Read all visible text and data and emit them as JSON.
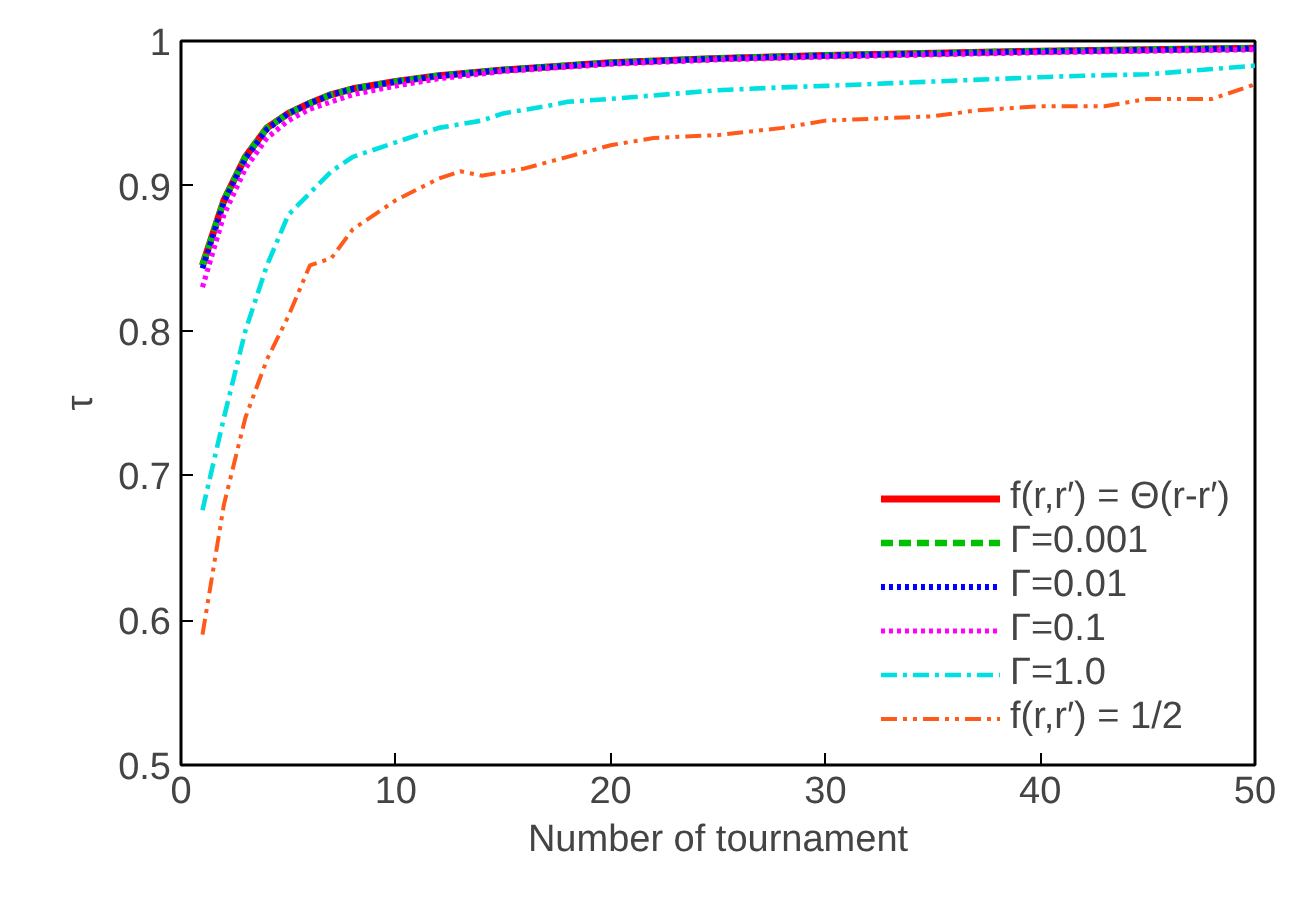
{
  "chart_data": {
    "type": "line",
    "xlabel": "Number of tournament",
    "ylabel": "τ",
    "xlim": [
      0,
      50
    ],
    "ylim": [
      0.5,
      1
    ],
    "xticks": [
      0,
      10,
      20,
      30,
      40,
      50
    ],
    "yticks": [
      0.5,
      0.6,
      0.7,
      0.8,
      0.9,
      {
        "value": 1,
        "label": "1"
      }
    ],
    "grid": false,
    "legend": "bottom right",
    "marker": "none",
    "series": [
      {
        "name": "f(r,r′) = Θ(r-r′)",
        "color": "#ff0000",
        "line_style": "solid",
        "x": [
          1,
          2,
          3,
          4,
          5,
          6,
          7,
          8,
          10,
          12,
          15,
          20,
          25,
          30,
          40,
          50
        ],
        "values": [
          0.845,
          0.89,
          0.92,
          0.94,
          0.95,
          0.957,
          0.963,
          0.967,
          0.972,
          0.976,
          0.98,
          0.985,
          0.988,
          0.99,
          0.993,
          0.995
        ]
      },
      {
        "name": "Γ=0.001",
        "color": "#00c000",
        "line_style": "dashed",
        "x": [
          1,
          2,
          3,
          4,
          5,
          6,
          7,
          8,
          10,
          12,
          15,
          20,
          25,
          30,
          40,
          50
        ],
        "values": [
          0.845,
          0.89,
          0.92,
          0.94,
          0.95,
          0.957,
          0.963,
          0.967,
          0.972,
          0.976,
          0.98,
          0.985,
          0.988,
          0.99,
          0.993,
          0.995
        ]
      },
      {
        "name": "Γ=0.01",
        "color": "#0000ff",
        "line_style": "dotted",
        "x": [
          1,
          2,
          3,
          4,
          5,
          6,
          7,
          8,
          10,
          12,
          15,
          20,
          25,
          30,
          40,
          50
        ],
        "values": [
          0.843,
          0.889,
          0.919,
          0.939,
          0.95,
          0.957,
          0.963,
          0.967,
          0.972,
          0.976,
          0.98,
          0.985,
          0.988,
          0.99,
          0.993,
          0.995
        ]
      },
      {
        "name": "Γ=0.1",
        "color": "#ff00ff",
        "line_style": "dotted",
        "x": [
          1,
          2,
          3,
          4,
          5,
          6,
          7,
          8,
          10,
          12,
          15,
          20,
          25,
          30,
          40,
          50
        ],
        "values": [
          0.83,
          0.88,
          0.912,
          0.933,
          0.945,
          0.953,
          0.958,
          0.963,
          0.969,
          0.974,
          0.979,
          0.984,
          0.987,
          0.989,
          0.992,
          0.994
        ]
      },
      {
        "name": "Γ=1.0",
        "color": "#00e0e0",
        "line_style": "dashdot",
        "x": [
          1,
          2,
          3,
          4,
          5,
          6,
          7,
          8,
          10,
          12,
          14,
          15,
          17,
          18,
          20,
          25,
          28,
          30,
          35,
          40,
          42,
          45,
          50
        ],
        "values": [
          0.676,
          0.74,
          0.8,
          0.845,
          0.88,
          0.895,
          0.91,
          0.92,
          0.93,
          0.94,
          0.945,
          0.95,
          0.955,
          0.958,
          0.96,
          0.966,
          0.968,
          0.969,
          0.972,
          0.975,
          0.976,
          0.977,
          0.983
        ]
      },
      {
        "name": "f(r,r′) = 1/2",
        "color": "#ff5a1a",
        "line_style": "dashdotdot",
        "x": [
          1,
          2,
          3,
          4,
          5,
          6,
          7,
          8,
          10,
          12,
          13,
          14,
          16,
          18,
          20,
          22,
          25,
          28,
          30,
          35,
          37,
          40,
          43,
          45,
          48,
          50
        ],
        "values": [
          0.59,
          0.68,
          0.74,
          0.78,
          0.81,
          0.845,
          0.85,
          0.87,
          0.89,
          0.905,
          0.91,
          0.907,
          0.912,
          0.92,
          0.928,
          0.933,
          0.935,
          0.94,
          0.945,
          0.948,
          0.952,
          0.955,
          0.955,
          0.96,
          0.96,
          0.97
        ]
      }
    ]
  }
}
